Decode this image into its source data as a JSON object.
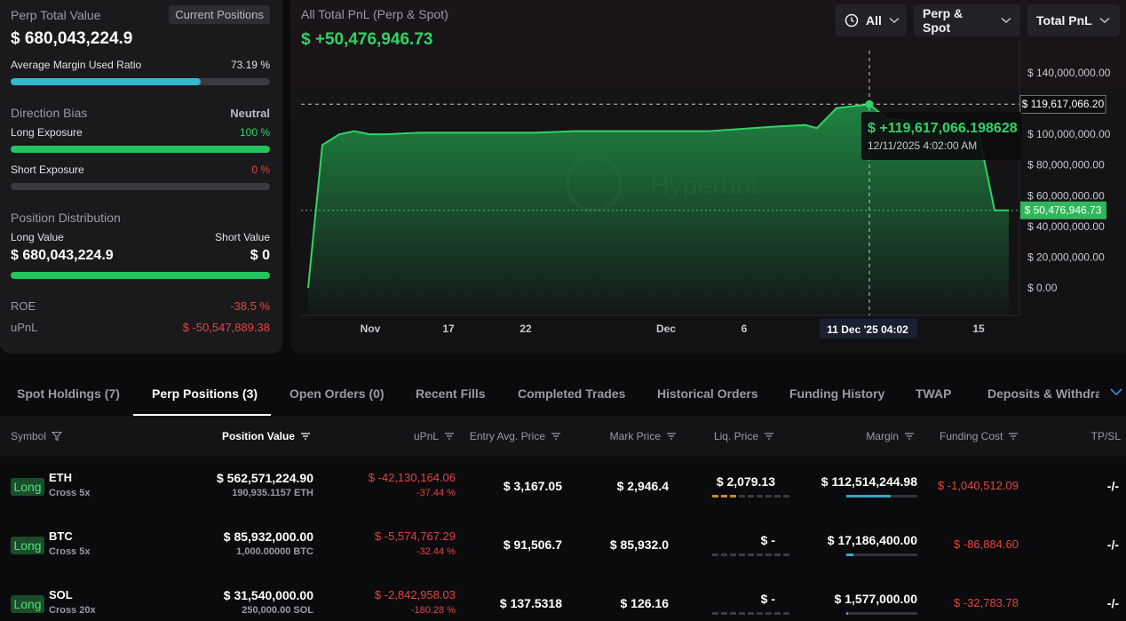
{
  "summary": {
    "perp_total_value_label": "Perp Total Value",
    "current_positions_label": "Current Positions",
    "perp_total_value": "$ 680,043,224.9",
    "avg_margin_label": "Average Margin Used Ratio",
    "avg_margin_value": "73.19 %",
    "avg_margin_fraction": 0.7319,
    "direction_bias_label": "Direction Bias",
    "direction_bias_value": "Neutral",
    "long_exposure_label": "Long Exposure",
    "long_exposure_value": "100 %",
    "long_exposure_fraction": 1.0,
    "short_exposure_label": "Short Exposure",
    "short_exposure_value": "0 %",
    "short_exposure_fraction": 0.0,
    "position_distribution_label": "Position Distribution",
    "long_value_label": "Long Value",
    "short_value_label": "Short Value",
    "long_value": "$ 680,043,224.9",
    "short_value": "$ 0",
    "distribution_long_fraction": 1.0,
    "roe_label": "ROE",
    "roe_value": "-38.5 %",
    "upnl_label": "uPnL",
    "upnl_value": "$ -50,547,889.38"
  },
  "chart_header": {
    "title": "All Total PnL (Perp & Spot)",
    "total": "$ +50,476,946.73",
    "range_label": "All",
    "market_label": "Perp & Spot",
    "metric_label": "Total PnL"
  },
  "chart_data": {
    "type": "area",
    "watermark": "Hyperbot",
    "x_ticks": [
      "Nov",
      "17",
      "22",
      "Dec",
      "6",
      "11 Dec '25  04:02",
      "15"
    ],
    "y_ticks": [
      "$ 140,000,000.00",
      "$ 100,000,000.00",
      "$ 80,000,000.00",
      "$ 60,000,000.00",
      "$ 40,000,000.00",
      "$ 20,000,000.00",
      "$ 0.00"
    ],
    "ylim": [
      0,
      140000000
    ],
    "series_values": [
      0,
      93000000,
      100000000,
      102000000,
      100000000,
      100000000,
      101000000,
      101000000,
      101000000,
      101000000,
      102000000,
      102000000,
      102000000,
      102000000,
      102000000,
      105000000,
      106000000,
      104000000,
      117000000,
      119600000,
      110000000,
      108000000,
      101000000,
      50500000,
      50500000
    ],
    "hover_value": "$ 119,617,066.20",
    "hover_label_value": "$ +119,617,066.198628",
    "hover_time": "12/11/2025 4:02:00 AM",
    "current_value": "$ 50,476,946.73",
    "hover_y": 119617066,
    "current_y": 50476946.73,
    "line_color": "#2fd466",
    "fill_color": "#1f8a44"
  },
  "tabs": [
    {
      "label": "Spot Holdings (7)"
    },
    {
      "label": "Perp Positions (3)"
    },
    {
      "label": "Open Orders (0)"
    },
    {
      "label": "Recent Fills"
    },
    {
      "label": "Completed Trades"
    },
    {
      "label": "Historical Orders"
    },
    {
      "label": "Funding History"
    },
    {
      "label": "TWAP"
    },
    {
      "label": "Deposits & Withdraw"
    }
  ],
  "table": {
    "headers": {
      "symbol": "Symbol",
      "position_value": "Position Value",
      "upnl": "uPnL",
      "entry": "Entry Avg. Price",
      "mark": "Mark Price",
      "liq": "Liq. Price",
      "margin": "Margin",
      "funding": "Funding Cost",
      "tpsl": "TP/SL"
    },
    "rows": [
      {
        "side": "Long",
        "symbol": "ETH",
        "mode": "Cross 5x",
        "position_value": "$ 562,571,224.90",
        "size": "190,935.1157 ETH",
        "upnl": "$ -42,130,164.06",
        "upnl_pct": "-37.44 %",
        "entry": "$ 3,167.05",
        "mark": "$ 2,946.4",
        "liq": "$ 2,079.13",
        "liq_risk_level": 3,
        "margin": "$ 112,514,244.98",
        "margin_fraction": 0.62,
        "funding": "$ -1,040,512.09",
        "tpsl": "-/-"
      },
      {
        "side": "Long",
        "symbol": "BTC",
        "mode": "Cross 5x",
        "position_value": "$ 85,932,000.00",
        "size": "1,000.00000 BTC",
        "upnl": "$ -5,574,767.29",
        "upnl_pct": "-32.44 %",
        "entry": "$ 91,506.7",
        "mark": "$ 85,932.0",
        "liq": "$ -",
        "liq_risk_level": 0,
        "margin": "$ 17,186,400.00",
        "margin_fraction": 0.1,
        "funding": "$ -86,884.60",
        "tpsl": "-/-"
      },
      {
        "side": "Long",
        "symbol": "SOL",
        "mode": "Cross 20x",
        "position_value": "$ 31,540,000.00",
        "size": "250,000.00 SOL",
        "upnl": "$ -2,842,958.03",
        "upnl_pct": "-180.28 %",
        "entry": "$ 137.5318",
        "mark": "$ 126.16",
        "liq": "$ -",
        "liq_risk_level": 0,
        "margin": "$ 1,577,000.00",
        "margin_fraction": 0.02,
        "funding": "$ -32,783.78",
        "tpsl": "-/-"
      }
    ]
  }
}
